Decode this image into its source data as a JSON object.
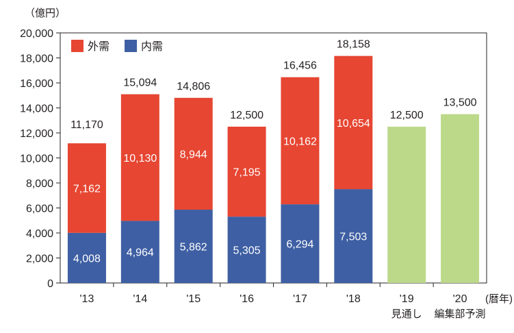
{
  "chart_data": {
    "type": "bar",
    "stacked": true,
    "unit_label": "（億円）",
    "x_unit_label": "(暦年)",
    "categories": [
      "'13",
      "'14",
      "'15",
      "'16",
      "'17",
      "'18",
      "'19",
      "'20"
    ],
    "category_notes": [
      "",
      "",
      "",
      "",
      "",
      "",
      "見通し",
      "編集部予測"
    ],
    "series": [
      {
        "name": "内需",
        "color": "#3e5fa3",
        "values": [
          4008,
          4964,
          5862,
          5305,
          6294,
          7503,
          null,
          null
        ]
      },
      {
        "name": "外需",
        "color": "#e64632",
        "values": [
          7162,
          10130,
          8944,
          7195,
          10162,
          10654,
          null,
          null
        ]
      },
      {
        "name": "",
        "color": "#bcd98a",
        "values": [
          null,
          null,
          null,
          null,
          null,
          null,
          12500,
          13500
        ]
      }
    ],
    "segment_labels": {
      "domestic": [
        "4,008",
        "4,964",
        "5,862",
        "5,305",
        "6,294",
        "7,503",
        "",
        ""
      ],
      "foreign": [
        "7,162",
        "10,130",
        "8,944",
        "7,195",
        "10,162",
        "10,654",
        "",
        ""
      ]
    },
    "total_labels": [
      "11,170",
      "15,094",
      "14,806",
      "12,500",
      "16,456",
      "18,158",
      "12,500",
      "13,500"
    ],
    "totals": [
      11170,
      15094,
      14806,
      12500,
      16456,
      18158,
      12500,
      13500
    ],
    "ylim": [
      0,
      20000
    ],
    "yticks": [
      0,
      2000,
      4000,
      6000,
      8000,
      10000,
      12000,
      14000,
      16000,
      18000,
      20000
    ],
    "ytick_labels": [
      "0",
      "2,000",
      "4,000",
      "6,000",
      "8,000",
      "10,000",
      "12,000",
      "14,000",
      "16,000",
      "18,000",
      "20,000"
    ],
    "grid": false,
    "legend": {
      "position": "top-left",
      "items": [
        {
          "label": "外需",
          "color": "#e64632"
        },
        {
          "label": "内需",
          "color": "#3e5fa3"
        }
      ]
    }
  }
}
